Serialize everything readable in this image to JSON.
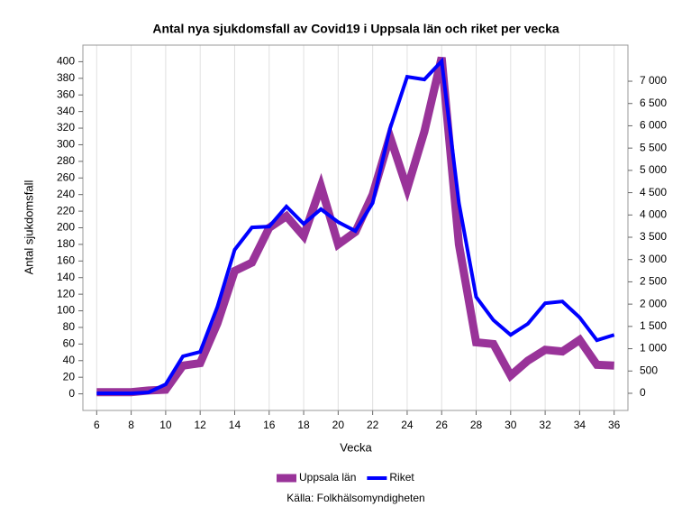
{
  "chart_data": {
    "type": "line",
    "title": "Antal nya sjukdomsfall av Covid19 i Uppsala län och riket per vecka",
    "xlabel": "Vecka",
    "ylabel": "Antal sjukdomsfall",
    "source": "Källa: Folkhälsomyndigheten",
    "x": [
      6,
      7,
      8,
      9,
      10,
      11,
      12,
      13,
      14,
      15,
      16,
      17,
      18,
      19,
      20,
      21,
      22,
      23,
      24,
      25,
      26,
      27,
      28,
      29,
      30,
      31,
      32,
      33,
      34,
      35,
      36
    ],
    "xlim": [
      5.2,
      36.8
    ],
    "xticks": [
      6,
      8,
      10,
      12,
      14,
      16,
      18,
      20,
      22,
      24,
      26,
      28,
      30,
      32,
      34,
      36
    ],
    "ylim": [
      -20,
      420
    ],
    "yticks": [
      0,
      20,
      40,
      60,
      80,
      100,
      120,
      140,
      160,
      180,
      200,
      220,
      240,
      260,
      280,
      300,
      320,
      340,
      360,
      380,
      400
    ],
    "y2lim": [
      -385,
      7810
    ],
    "y2ticks": [
      0,
      500,
      {
        "value": 1000,
        "label": "1 000"
      },
      {
        "value": 1500,
        "label": "1 500"
      },
      {
        "value": 2000,
        "label": "2 000"
      },
      {
        "value": 2500,
        "label": "2 500"
      },
      {
        "value": 3000,
        "label": "3 000"
      },
      {
        "value": 3500,
        "label": "3 500"
      },
      {
        "value": 4000,
        "label": "4 000"
      },
      {
        "value": 4500,
        "label": "4 500"
      },
      {
        "value": 5000,
        "label": "5 000"
      },
      {
        "value": 5500,
        "label": "5 500"
      },
      {
        "value": 6000,
        "label": "6 000"
      },
      {
        "value": 6500,
        "label": "6 500"
      },
      {
        "value": 7000,
        "label": "7 000"
      }
    ],
    "grid": "x",
    "legend": "bottom",
    "series": [
      {
        "name": "Uppsala län",
        "color": "#993399",
        "width": 9,
        "values": [
          2,
          2,
          2,
          4,
          5,
          34,
          37,
          85,
          148,
          158,
          200,
          214,
          190,
          250,
          180,
          195,
          240,
          310,
          247,
          316,
          405,
          180,
          62,
          60,
          22,
          40,
          53,
          51,
          65,
          35,
          34
        ]
      },
      {
        "name": "Riket",
        "color": "#0000ff",
        "width": 4,
        "axis": "y2",
        "values": [
          0,
          0,
          0,
          20,
          200,
          830,
          930,
          1940,
          3220,
          3720,
          3740,
          4190,
          3800,
          4130,
          3840,
          3640,
          4270,
          5930,
          7100,
          7040,
          7450,
          4270,
          2160,
          1640,
          1310,
          1560,
          2020,
          2060,
          1700,
          1190,
          1310
        ]
      }
    ]
  }
}
